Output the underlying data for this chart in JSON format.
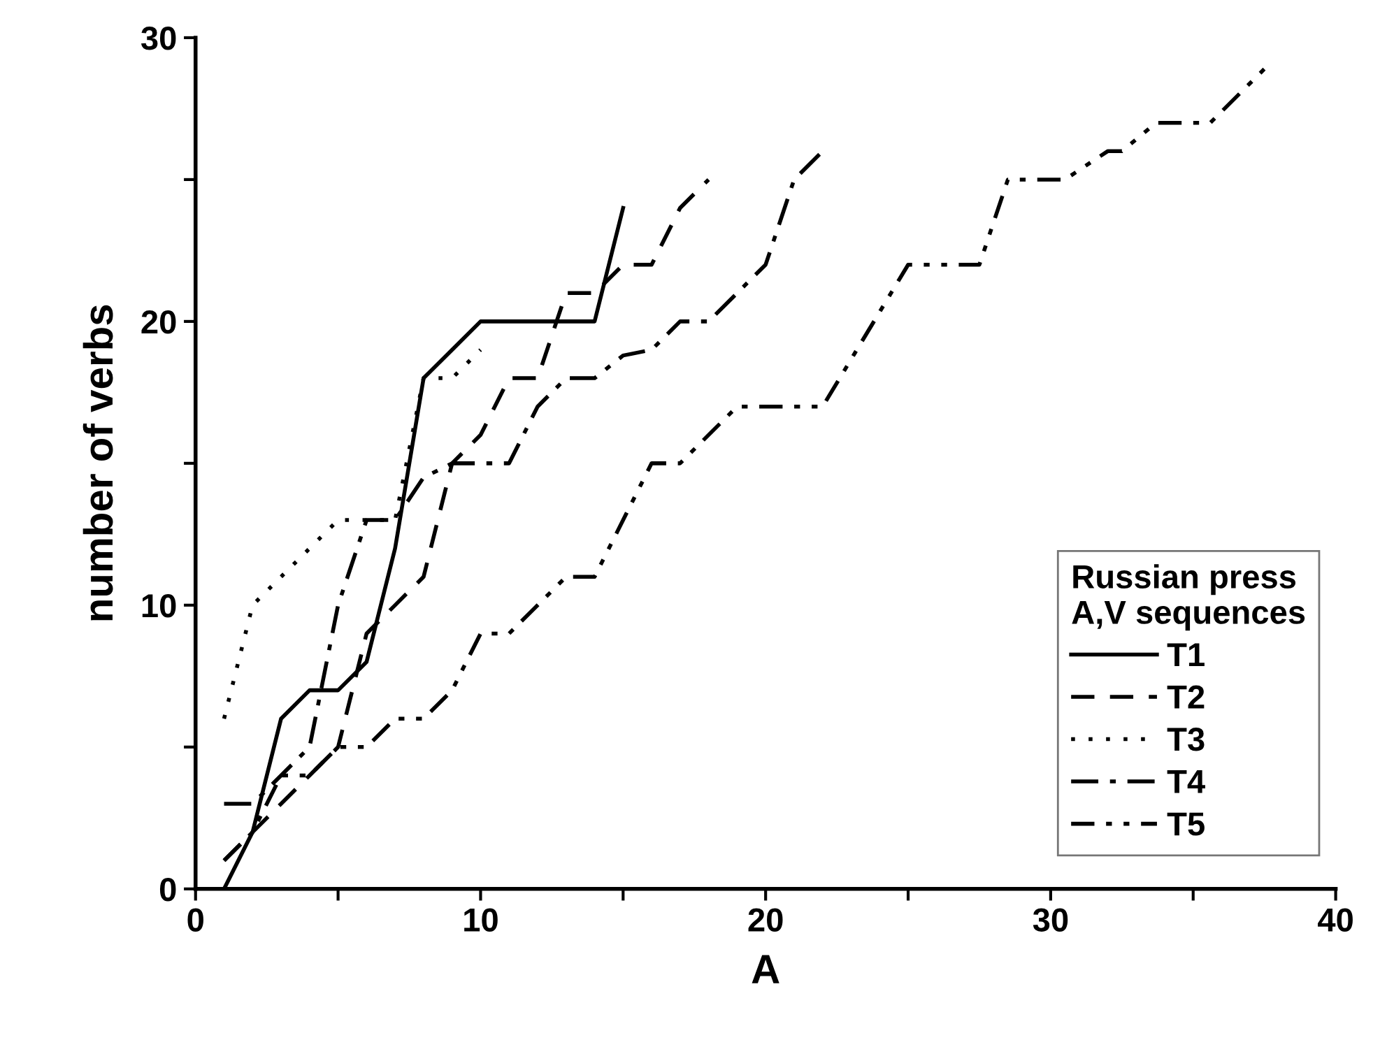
{
  "chart_data": {
    "type": "line",
    "xlabel": "A",
    "ylabel": "number of verbs",
    "legend_title": "Russian press\nA,V sequences",
    "legend": "bottom right",
    "grid": false,
    "marker": "none",
    "xlim": [
      0,
      40
    ],
    "xticks": [
      0,
      {
        "value": 5,
        "label": null
      },
      10,
      {
        "value": 15,
        "label": null
      },
      20,
      {
        "value": 25,
        "label": null
      },
      30,
      {
        "value": 35,
        "label": null
      },
      40
    ],
    "ylim": [
      0,
      30
    ],
    "yticks": [
      0,
      {
        "value": 5,
        "label": null
      },
      10,
      {
        "value": 15,
        "label": null
      },
      20,
      {
        "value": 25,
        "label": null
      },
      30
    ],
    "series": [
      {
        "name": "T1",
        "color": "#000000",
        "line_style": "solid",
        "x": [
          1,
          2,
          3,
          4,
          5,
          6,
          7,
          8,
          9,
          10,
          14,
          15
        ],
        "values": [
          0,
          2,
          6,
          7,
          7,
          8,
          12,
          18,
          19,
          20,
          20,
          24
        ]
      },
      {
        "name": "T2",
        "color": "#000000",
        "line_style": "dashed",
        "x": [
          1,
          2,
          3,
          4,
          5,
          6,
          7,
          8,
          9,
          10,
          11,
          12,
          13,
          14,
          15,
          16,
          17,
          18
        ],
        "values": [
          1,
          2,
          3,
          4,
          5,
          9,
          10,
          11,
          15,
          16,
          18,
          18,
          21,
          21,
          22,
          22,
          24,
          25
        ]
      },
      {
        "name": "T3",
        "color": "#000000",
        "line_style": "dotted",
        "x": [
          1,
          2,
          3,
          4,
          5,
          6,
          7,
          8,
          9,
          10
        ],
        "values": [
          6,
          10,
          11,
          12,
          13,
          13,
          13,
          18,
          18,
          19
        ]
      },
      {
        "name": "T4",
        "color": "#000000",
        "line_style": "dashdot",
        "x": [
          1,
          2,
          3,
          4,
          5,
          6,
          7,
          8,
          9,
          11,
          12,
          13,
          14,
          15,
          16,
          17,
          18,
          20,
          21,
          22
        ],
        "values": [
          3,
          3,
          4,
          5,
          10,
          13,
          13,
          14.5,
          15,
          15,
          17,
          18,
          18,
          18.8,
          19,
          20,
          20,
          22,
          25,
          26
        ]
      },
      {
        "name": "T5",
        "color": "#000000",
        "line_style": "dashdotdot",
        "x": [
          1,
          2,
          3,
          4,
          5,
          6,
          7,
          8,
          9,
          10,
          11,
          13,
          14,
          16,
          17,
          19,
          21,
          22,
          25,
          27.5,
          28.5,
          30.5,
          32,
          32.5,
          33.7,
          35.6,
          37.6
        ],
        "values": [
          1,
          2,
          4,
          4,
          5,
          5,
          6,
          6,
          7,
          9,
          9,
          11,
          11,
          15,
          15,
          17,
          17,
          17,
          22,
          22,
          25,
          25,
          26,
          26,
          27,
          27,
          29
        ]
      }
    ]
  }
}
